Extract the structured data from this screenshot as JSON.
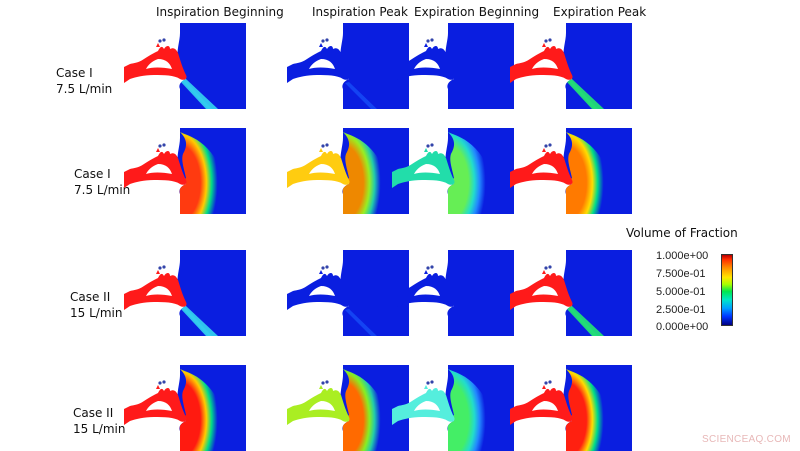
{
  "columns": [
    {
      "label": "Inspiration Beginning"
    },
    {
      "label": "Inspiration Peak"
    },
    {
      "label": "Expiration Beginning"
    },
    {
      "label": "Expiration Peak"
    }
  ],
  "rows": [
    {
      "case": "Case I",
      "flow": "7.5 L/min",
      "view": "jet"
    },
    {
      "case": "Case I",
      "flow": "7.5 L/min",
      "view": "cloud"
    },
    {
      "case": "Case II",
      "flow": "15 L/min",
      "view": "jet"
    },
    {
      "case": "Case II",
      "flow": "15 L/min",
      "view": "cloud"
    }
  ],
  "panels": [
    [
      {
        "airway": "#ff1a1a",
        "domain": "jet",
        "jet": "#33ccee"
      },
      {
        "airway": "#0a1ee0",
        "domain": "faint-jet",
        "jet": "#1a5cff"
      },
      {
        "airway": "#0a1ee0",
        "domain": "empty"
      },
      {
        "airway": "#ff1a1a",
        "domain": "jet",
        "jet": "#22dd77"
      }
    ],
    [
      {
        "airway": "#ff1a1a",
        "domain": "cloud",
        "core": "#ff3a10",
        "mid": "#ffcc00",
        "edge": "#00dd88"
      },
      {
        "airway": "#ffcc10",
        "domain": "cloud",
        "core": "#ee8800",
        "mid": "#99ee22",
        "edge": "#22ccaa"
      },
      {
        "airway": "#22ddaa",
        "domain": "cloud",
        "core": "#66ee55",
        "mid": "#22ddcc",
        "edge": "#2288ff"
      },
      {
        "airway": "#ff1a1a",
        "domain": "cloud",
        "core": "#ff7a00",
        "mid": "#ffdd00",
        "edge": "#00dd88"
      }
    ],
    [
      {
        "airway": "#ff1a1a",
        "domain": "jet",
        "jet": "#33ccee"
      },
      {
        "airway": "#0a1ee0",
        "domain": "faint-jet",
        "jet": "#1a5cff"
      },
      {
        "airway": "#0a1ee0",
        "domain": "empty"
      },
      {
        "airway": "#ff1a1a",
        "domain": "jet",
        "jet": "#22dd77"
      }
    ],
    [
      {
        "airway": "#ff1a1a",
        "domain": "cloud",
        "core": "#ff1a10",
        "mid": "#ffcc00",
        "edge": "#00dd88"
      },
      {
        "airway": "#aaee22",
        "domain": "cloud",
        "core": "#ff6a00",
        "mid": "#88ee22",
        "edge": "#22ccaa"
      },
      {
        "airway": "#55eedd",
        "domain": "cloud",
        "core": "#44ee66",
        "mid": "#22ddcc",
        "edge": "#2288ff"
      },
      {
        "airway": "#ff1a1a",
        "domain": "cloud",
        "core": "#ff2010",
        "mid": "#ffdd00",
        "edge": "#00dd88"
      }
    ]
  ],
  "legend": {
    "title": "Volume of Fraction",
    "ticks": [
      "1.000e+00",
      "7.500e-01",
      "5.000e-01",
      "2.500e-01",
      "0.000e+00"
    ]
  },
  "watermark": "SCIENCEAQ.COM",
  "colors": {
    "background_blue": "#0a1ee0"
  }
}
